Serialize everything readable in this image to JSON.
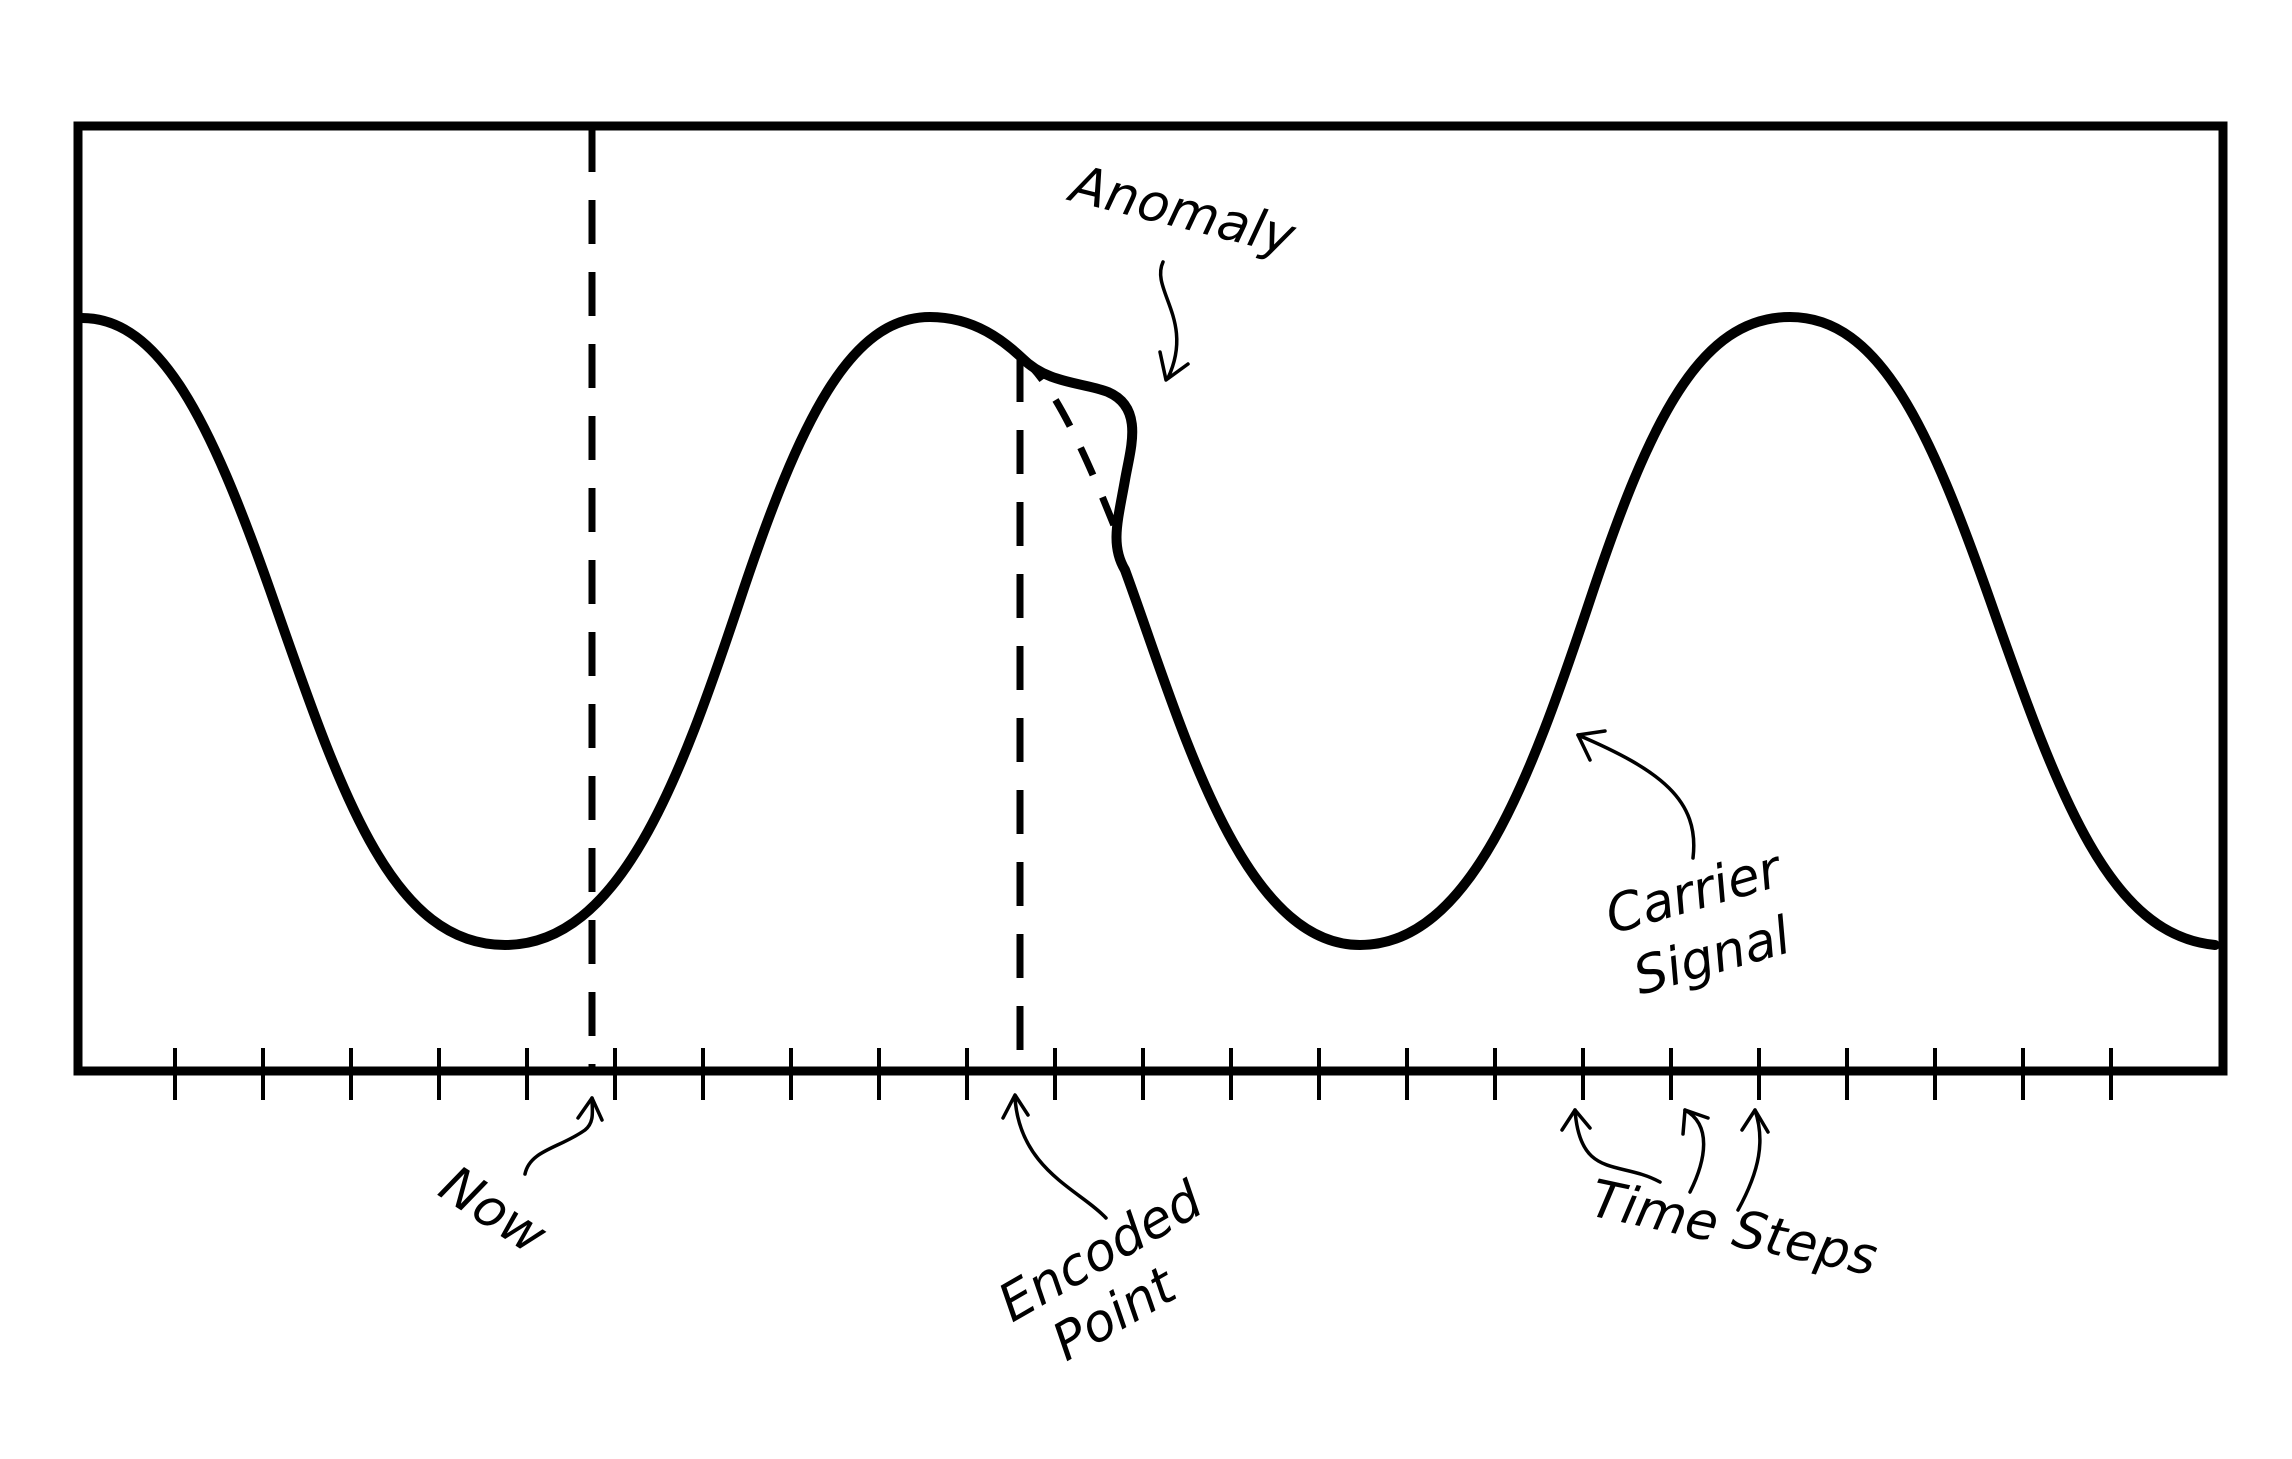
{
  "annotations": {
    "anomaly": "Anomaly",
    "carrier_line1": "Carrier",
    "carrier_line2": "Signal",
    "now": "Now",
    "encoded_line1": "Encoded",
    "encoded_line2": "Point",
    "time_steps": "Time Steps"
  },
  "colors": {
    "ink": "#000000",
    "background": "#ffffff"
  },
  "ticks": {
    "count": 23
  }
}
